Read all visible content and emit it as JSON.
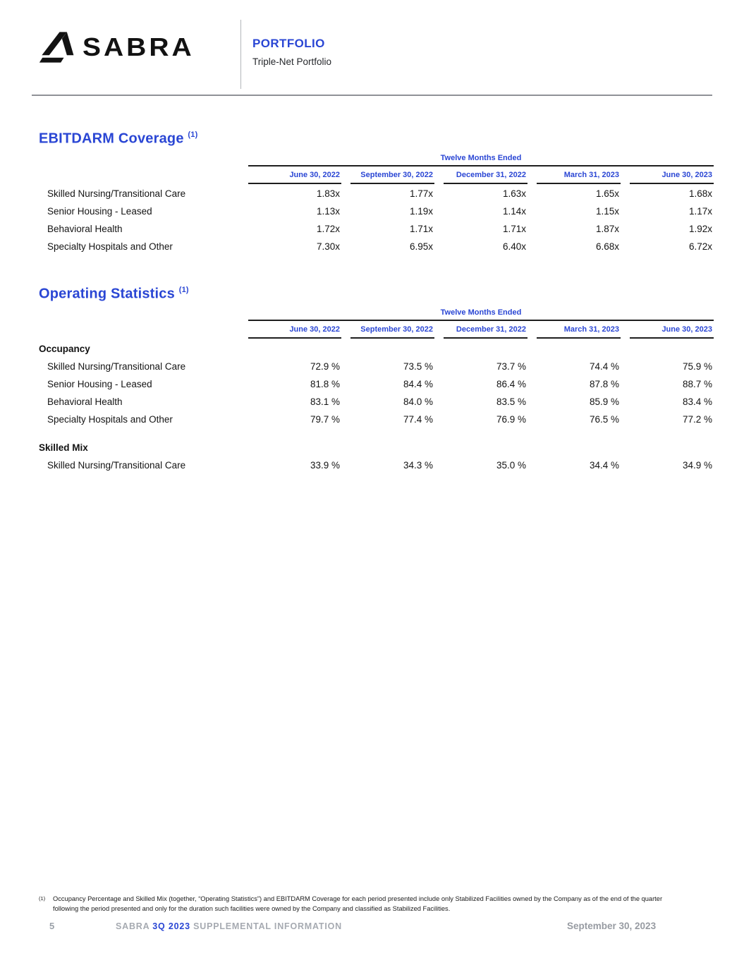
{
  "header": {
    "brand": "SABRA",
    "section_label": "PORTFOLIO",
    "section_sublabel": "Triple-Net Portfolio"
  },
  "table_common": {
    "span_header": "Twelve Months Ended",
    "columns": [
      "June 30, 2022",
      "September 30, 2022",
      "December 31, 2022",
      "March 31, 2023",
      "June 30, 2023"
    ]
  },
  "ebitdarm": {
    "title": "EBITDARM Coverage",
    "footnote_ref": "(1)",
    "rows": [
      {
        "label": "Skilled Nursing/Transitional Care",
        "values": [
          "1.83x",
          "1.77x",
          "1.63x",
          "1.65x",
          "1.68x"
        ]
      },
      {
        "label": "Senior Housing - Leased",
        "values": [
          "1.13x",
          "1.19x",
          "1.14x",
          "1.15x",
          "1.17x"
        ]
      },
      {
        "label": "Behavioral Health",
        "values": [
          "1.72x",
          "1.71x",
          "1.71x",
          "1.87x",
          "1.92x"
        ]
      },
      {
        "label": "Specialty Hospitals and Other",
        "values": [
          "7.30x",
          "6.95x",
          "6.40x",
          "6.68x",
          "6.72x"
        ]
      }
    ]
  },
  "operating": {
    "title": "Operating Statistics",
    "footnote_ref": "(1)",
    "groups": [
      {
        "name": "Occupancy",
        "rows": [
          {
            "label": "Skilled Nursing/Transitional Care",
            "values": [
              "72.9 %",
              "73.5 %",
              "73.7 %",
              "74.4 %",
              "75.9 %"
            ]
          },
          {
            "label": "Senior Housing - Leased",
            "values": [
              "81.8 %",
              "84.4 %",
              "86.4 %",
              "87.8 %",
              "88.7 %"
            ]
          },
          {
            "label": "Behavioral Health",
            "values": [
              "83.1 %",
              "84.0 %",
              "83.5 %",
              "85.9 %",
              "83.4 %"
            ]
          },
          {
            "label": "Specialty Hospitals and Other",
            "values": [
              "79.7 %",
              "77.4 %",
              "76.9 %",
              "76.5 %",
              "77.2 %"
            ]
          }
        ]
      },
      {
        "name": "Skilled Mix",
        "rows": [
          {
            "label": "Skilled Nursing/Transitional Care",
            "values": [
              "33.9 %",
              "34.3 %",
              "35.0 %",
              "34.4 %",
              "34.9 %"
            ]
          }
        ]
      }
    ]
  },
  "footnote": {
    "marker": "(1)",
    "text": "Occupancy Percentage and Skilled Mix (together, “Operating Statistics”) and EBITDARM Coverage for each period presented include only Stabilized Facilities owned by the Company as of the end of the quarter following the period presented and only for the duration such facilities were owned by the Company and classified as Stabilized Facilities."
  },
  "footer": {
    "page_number": "5",
    "brand": "SABRA",
    "quarter": "3Q 2023",
    "suffix": "SUPPLEMENTAL INFORMATION",
    "date": "September 30, 2023"
  },
  "colors": {
    "accent_blue": "#2a46d4",
    "rule_dark": "#1e1e1e",
    "footer_gray": "#9aa0a8"
  }
}
